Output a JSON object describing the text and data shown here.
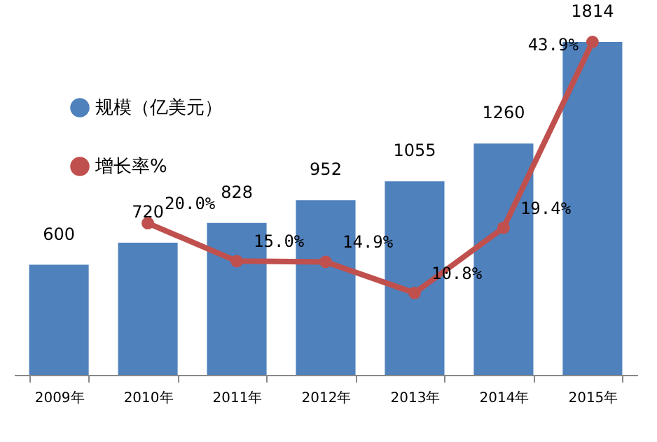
{
  "chart_data": {
    "type": "bar",
    "categories": [
      "2009年",
      "2010年",
      "2011年",
      "2012年",
      "2013年",
      "2014年",
      "2015年"
    ],
    "series": [
      {
        "name": "规模（亿美元）",
        "color": "#4f81bd",
        "values": [
          600,
          720,
          828,
          952,
          1055,
          1260,
          1814
        ],
        "value_labels": [
          "600",
          "720",
          "828",
          "952",
          "1055",
          "1260",
          "1814"
        ]
      },
      {
        "name": "增长率%",
        "type": "line",
        "axis": "y2",
        "color": "#c0504d",
        "values": [
          null,
          20.0,
          15.0,
          14.9,
          10.8,
          19.4,
          43.9
        ],
        "value_labels": [
          null,
          "20.0%",
          "15.0%",
          "14.9%",
          "10.8%",
          "19.4%",
          "43.9%"
        ]
      }
    ],
    "legend": "top left",
    "marker": "circle",
    "line_style": "solid",
    "tick_labels": "x"
  }
}
